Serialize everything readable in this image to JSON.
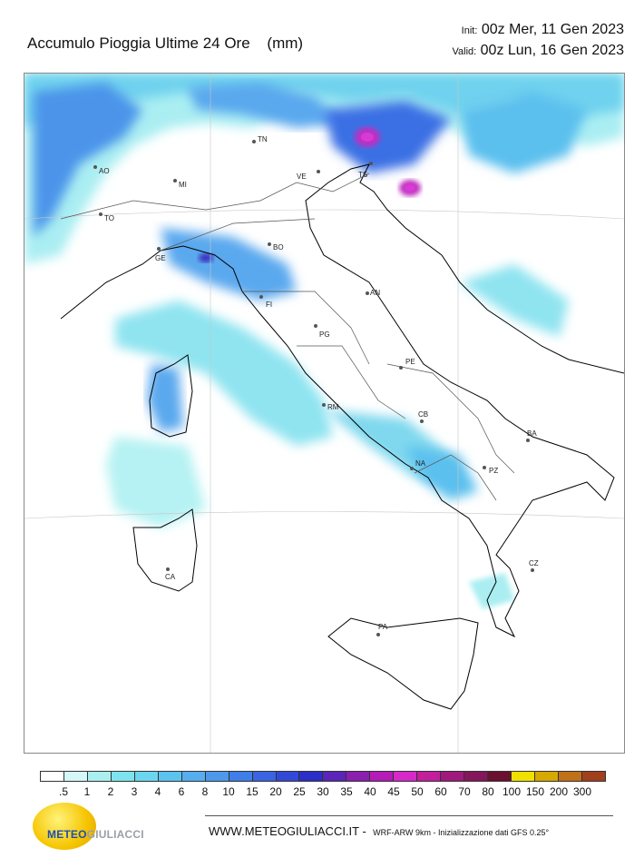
{
  "header": {
    "title": "Accumulo Pioggia Ultime 24 Ore",
    "unit": "(mm)",
    "init_label": "Init:",
    "init_value": "00z Mer, 11 Gen 2023",
    "valid_label": "Valid:",
    "valid_value": "00z Lun, 16 Gen 2023"
  },
  "cities": [
    {
      "code": "AO"
    },
    {
      "code": "MI"
    },
    {
      "code": "TO"
    },
    {
      "code": "GE"
    },
    {
      "code": "TN"
    },
    {
      "code": "VE"
    },
    {
      "code": "TS"
    },
    {
      "code": "BO"
    },
    {
      "code": "FI"
    },
    {
      "code": "AN"
    },
    {
      "code": "PG"
    },
    {
      "code": "PE"
    },
    {
      "code": "RM"
    },
    {
      "code": "CB"
    },
    {
      "code": "BA"
    },
    {
      "code": "NA"
    },
    {
      "code": "PZ"
    },
    {
      "code": "CA"
    },
    {
      "code": "CZ"
    },
    {
      "code": "PA"
    }
  ],
  "legend": {
    "labels": [
      ".5",
      "1",
      "2",
      "3",
      "4",
      "6",
      "8",
      "10",
      "15",
      "20",
      "25",
      "30",
      "35",
      "40",
      "45",
      "50",
      "60",
      "70",
      "80",
      "100",
      "150",
      "200",
      "300"
    ],
    "colors": [
      "#ffffff",
      "#d6f7f7",
      "#aaf0f0",
      "#7fe3ee",
      "#6cd6ef",
      "#5bc3ee",
      "#56aeee",
      "#4e98ec",
      "#3f7ee8",
      "#3b64e2",
      "#3448d8",
      "#2c2ec8",
      "#5a25b8",
      "#8a1fb0",
      "#b41bb8",
      "#d62ac8",
      "#c21f9c",
      "#a01a7e",
      "#86165c",
      "#6a1030",
      "#f0e000",
      "#d6a800",
      "#c07018",
      "#a0401c"
    ]
  },
  "branding": {
    "logo_a": "METEO",
    "logo_b": "GIULIACCI",
    "website": "WWW.METEOGIULIACCI.IT -",
    "model_info": "WRF-ARW 9km - Inizializzazione dati GFS 0.25°"
  }
}
